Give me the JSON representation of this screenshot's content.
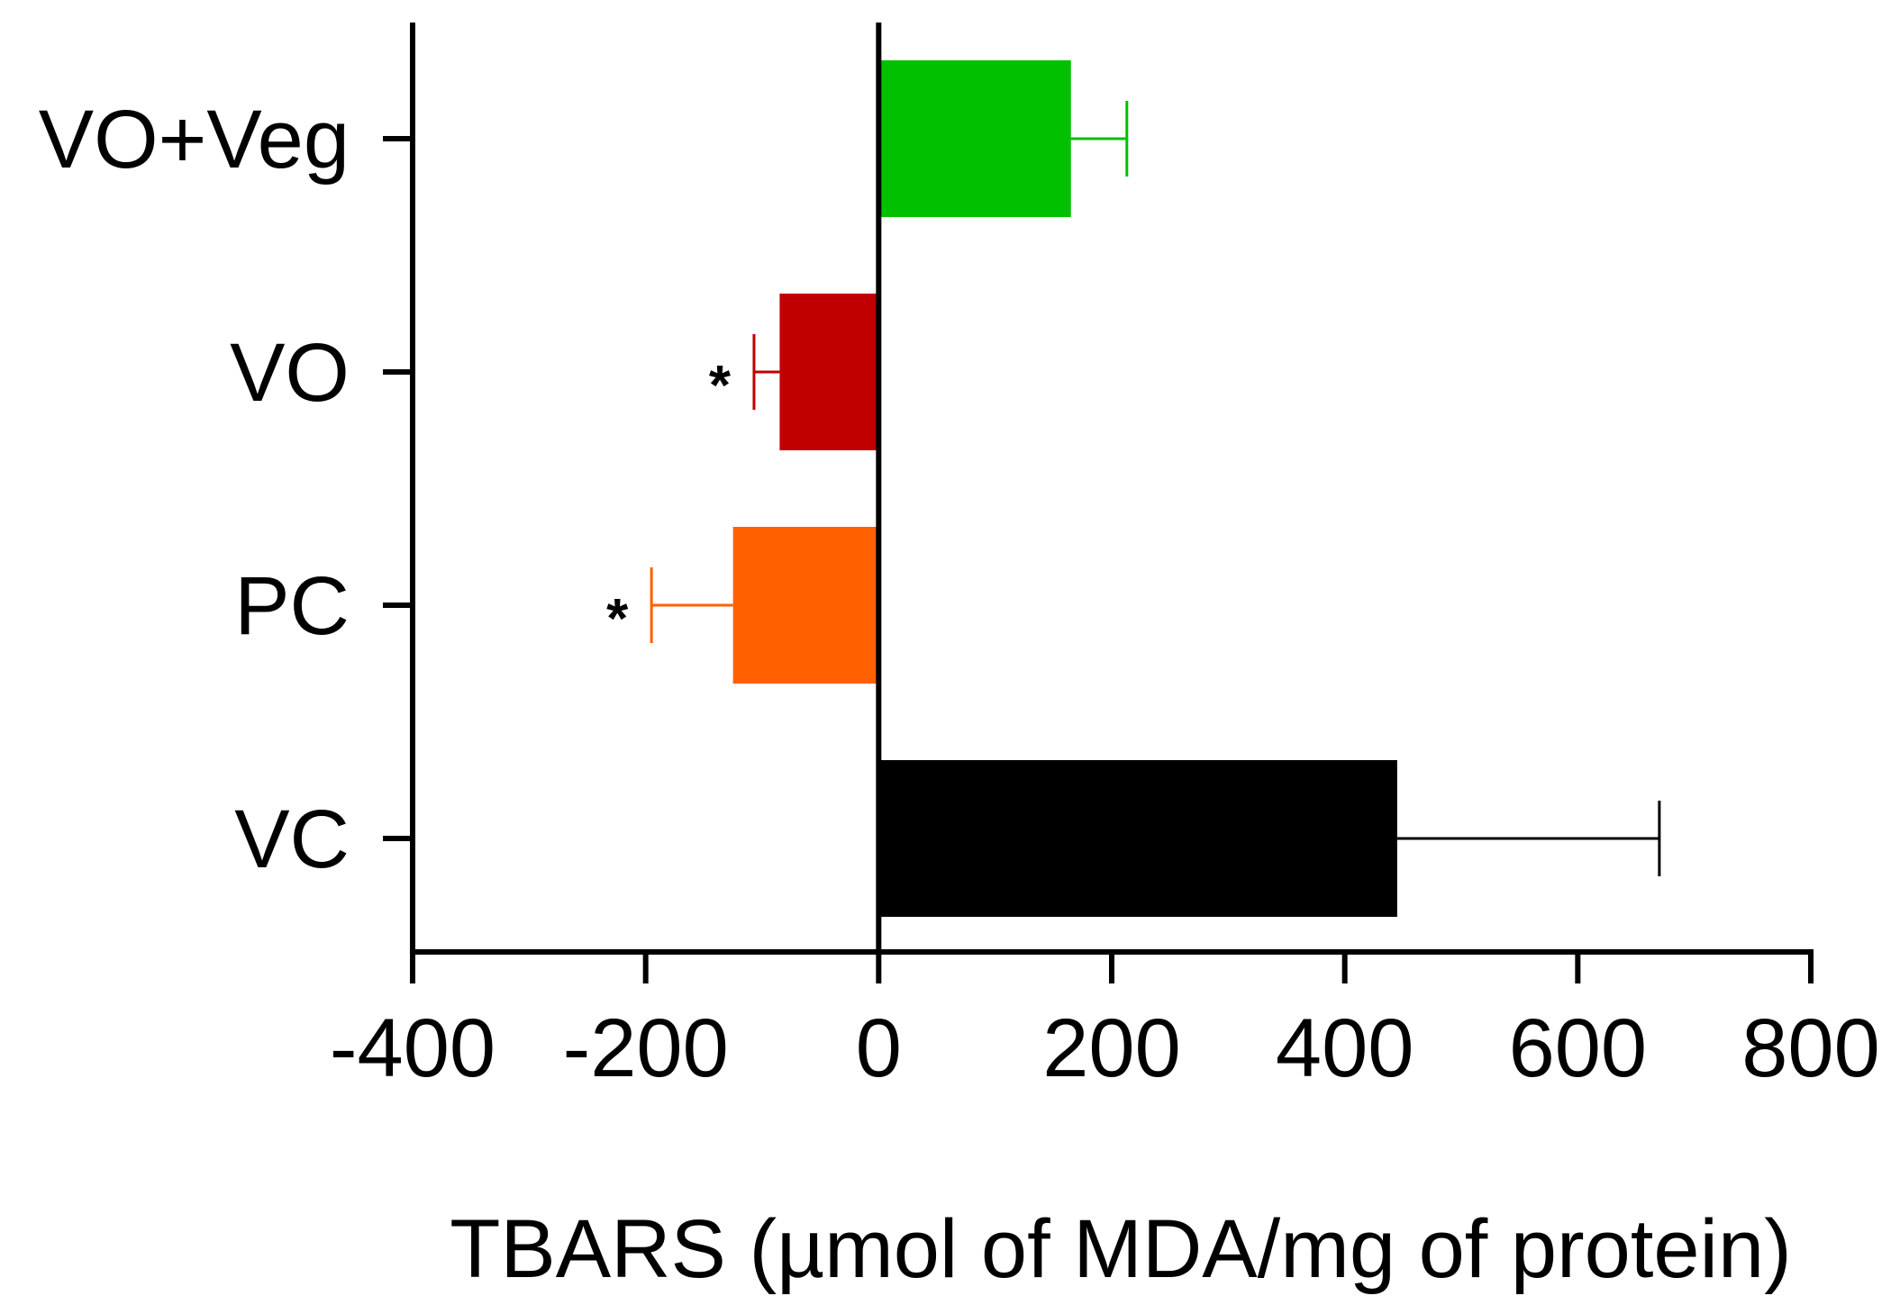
{
  "chart_data": {
    "type": "bar",
    "orientation": "horizontal",
    "title": "",
    "xlabel": "TBARS (µmol of MDA/mg of protein)",
    "ylabel": "",
    "xlim": [
      -400,
      800
    ],
    "xticks": [
      -400,
      -200,
      0,
      200,
      400,
      600,
      800
    ],
    "xtick_labels": [
      "-400",
      "-200",
      "0",
      "200",
      "400",
      "600",
      "800"
    ],
    "grid": false,
    "categories": [
      "VO+Veg",
      "VO",
      "PC",
      "VC"
    ],
    "series": [
      {
        "name": "TBARS",
        "values": [
          165,
          -85,
          -125,
          445
        ],
        "errors": [
          48,
          22,
          70,
          225
        ],
        "colors": [
          "#00c000",
          "#c00000",
          "#ff6000",
          "#000000"
        ],
        "significance": [
          "",
          "*",
          "*",
          ""
        ]
      }
    ]
  }
}
